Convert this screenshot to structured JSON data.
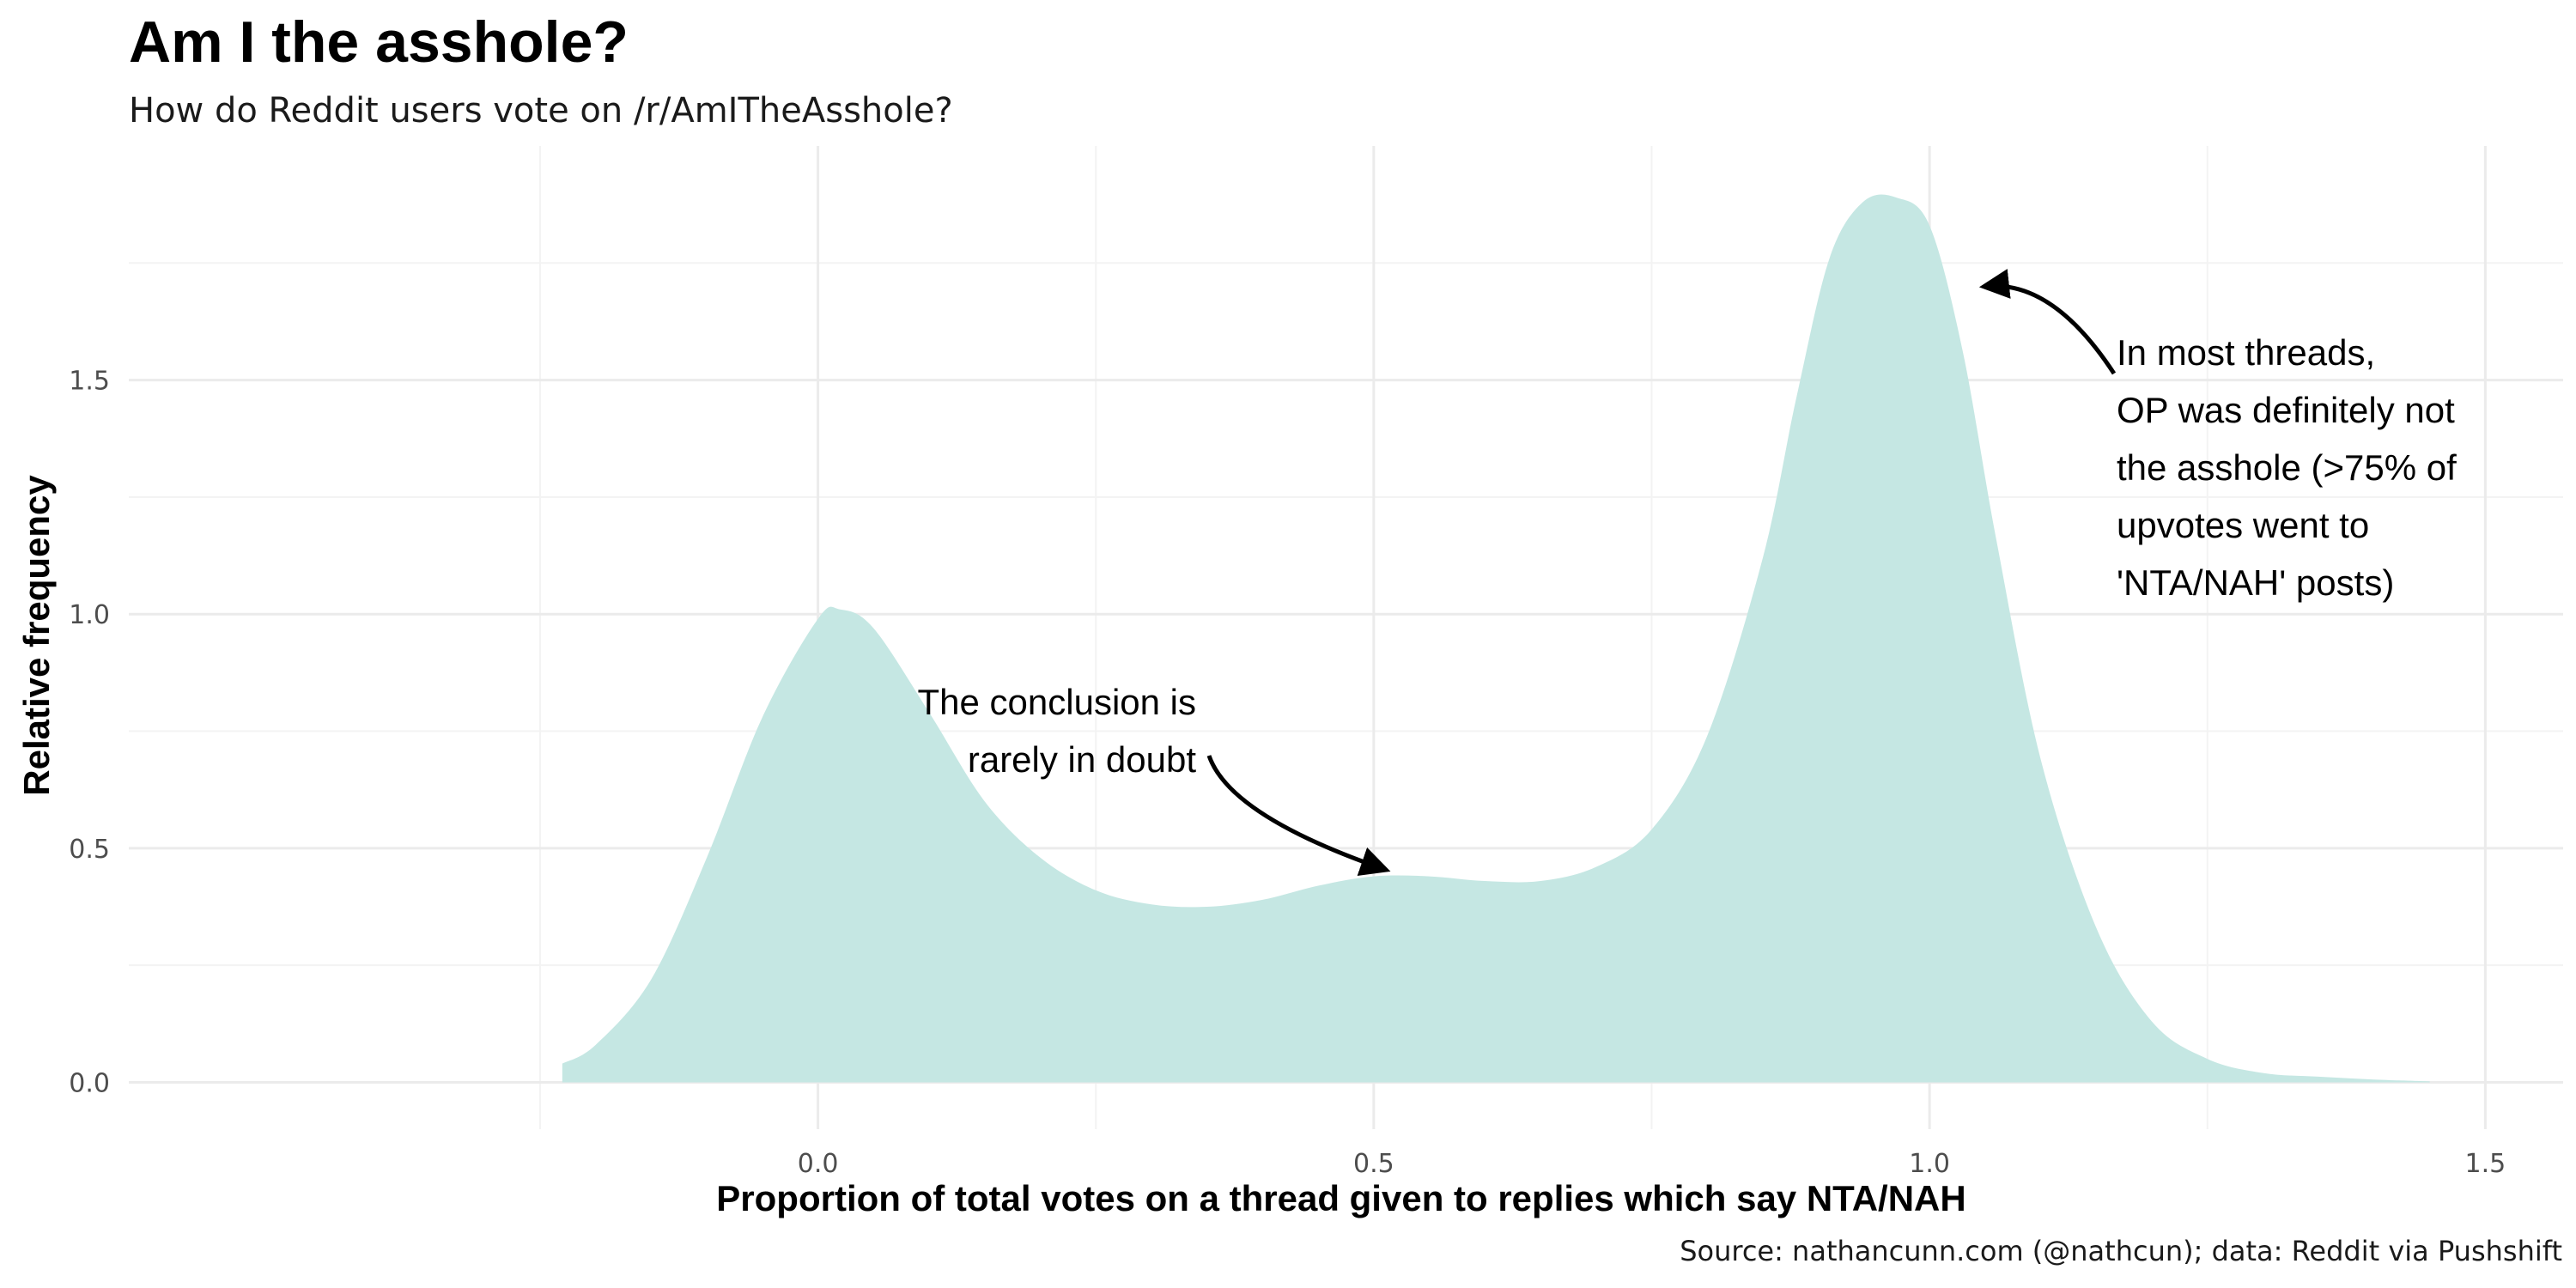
{
  "chart_data": {
    "type": "area",
    "title": "Am I the asshole?",
    "subtitle": "How do Reddit users vote on /r/AmITheAsshole?",
    "xlabel": "Proportion of total votes on a thread given to replies which say NTA/NAH",
    "ylabel": "Relative frequency",
    "caption": "Source: nathancunn.com (@nathcun); data: Reddit via Pushshift",
    "xlim": [
      -0.62,
      1.57
    ],
    "ylim": [
      -0.1,
      2.0
    ],
    "x_ticks": [
      0.0,
      0.5,
      1.0,
      1.5
    ],
    "x_tick_labels": [
      "0.0",
      "0.5",
      "1.0",
      "1.5"
    ],
    "y_ticks": [
      0.0,
      0.5,
      1.0,
      1.5
    ],
    "y_tick_labels": [
      "0.0",
      "0.5",
      "1.0",
      "1.5"
    ],
    "x_minor": [
      -0.25,
      0.25,
      0.75,
      1.25
    ],
    "y_minor": [
      0.25,
      0.75,
      1.25,
      1.75
    ],
    "grid": true,
    "fill_color": "#c5e7e3",
    "series": [
      {
        "x": [
          -0.23,
          -0.2,
          -0.15,
          -0.1,
          -0.05,
          0.0,
          0.02,
          0.05,
          0.1,
          0.15,
          0.2,
          0.25,
          0.3,
          0.35,
          0.4,
          0.45,
          0.5,
          0.55,
          0.6,
          0.65,
          0.7,
          0.75,
          0.8,
          0.85,
          0.88,
          0.91,
          0.94,
          0.97,
          1.0,
          1.03,
          1.06,
          1.1,
          1.15,
          1.2,
          1.25,
          1.3,
          1.35,
          1.4,
          1.45
        ],
        "y": [
          0.04,
          0.08,
          0.22,
          0.48,
          0.78,
          0.99,
          1.01,
          0.97,
          0.79,
          0.6,
          0.48,
          0.41,
          0.38,
          0.375,
          0.39,
          0.42,
          0.44,
          0.44,
          0.43,
          0.43,
          0.46,
          0.54,
          0.74,
          1.12,
          1.46,
          1.76,
          1.88,
          1.89,
          1.83,
          1.56,
          1.16,
          0.69,
          0.33,
          0.13,
          0.05,
          0.02,
          0.012,
          0.006,
          0.002
        ]
      }
    ],
    "annotations": [
      {
        "lines": [
          "In most threads,",
          "OP was definitely not",
          "the asshole (>75% of",
          "upvotes went to",
          "'NTA/NAH' posts)"
        ],
        "align": "left",
        "text_x": 1.4,
        "text_y": 1.55,
        "arrow_to": [
          1.05,
          1.7
        ]
      },
      {
        "lines": [
          "The conclusion is",
          "rarely in doubt"
        ],
        "align": "right",
        "text_x": 0.495,
        "text_y": 0.81,
        "arrow_to": [
          0.51,
          0.44
        ]
      }
    ]
  }
}
